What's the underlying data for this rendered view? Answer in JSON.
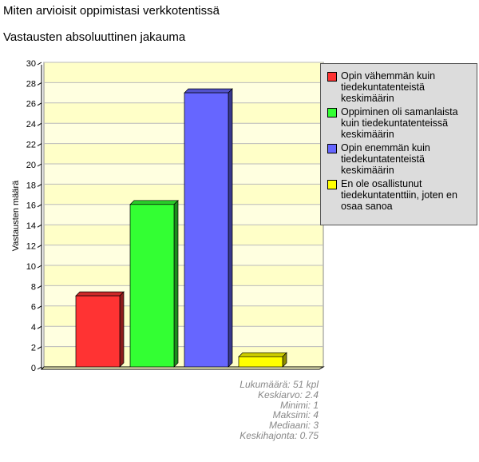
{
  "chart_data": {
    "type": "bar",
    "title": "Miten arvioisit oppimistasi verkkotentissä",
    "subtitle": "Vastausten absoluuttinen jakauma",
    "y_label": "Vastausten määrä",
    "categories": [
      "Opin vähemmän kuin tiedekuntatenteistä keskimäärin",
      "Oppiminen oli samanlaista kuin tiedekuntatenteissä keskimäärin",
      "Opin enemmän kuin tiedekuntatenteistä keskimäärin",
      "En ole osallistunut tiedekuntatenttiin, joten en osaa sanoa"
    ],
    "values": [
      7,
      16,
      27,
      1
    ],
    "colors": [
      "#ff3333",
      "#33ff33",
      "#6666ff",
      "#ffff00"
    ],
    "ylim": [
      0,
      30
    ],
    "yticks": [
      0,
      2,
      4,
      6,
      8,
      10,
      12,
      14,
      16,
      18,
      20,
      22,
      24,
      26,
      28,
      30
    ],
    "grid": true,
    "statistics": [
      "Lukumäärä: 51 kpl",
      "Keskiarvo: 2.4",
      "Minimi: 1",
      "Maksimi: 4",
      "Mediaani: 3",
      "Keskihajonta: 0.75"
    ]
  }
}
